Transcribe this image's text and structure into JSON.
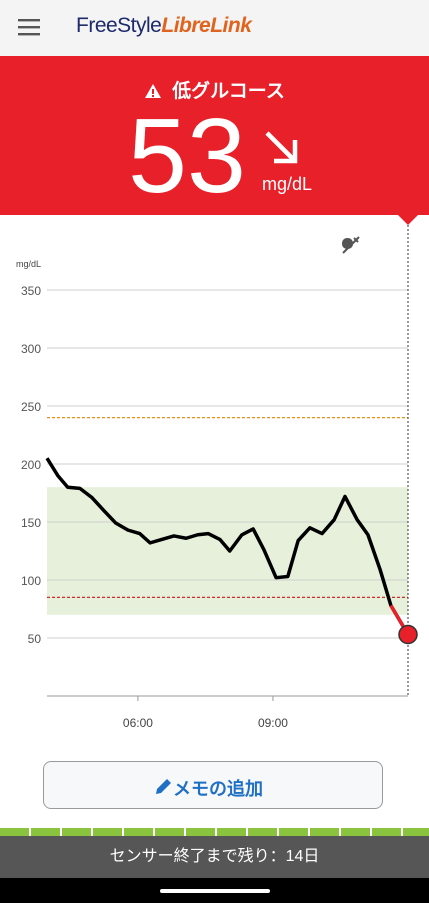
{
  "header": {
    "brand_first": "FreeStyle",
    "brand_second": "LibreLink"
  },
  "alert": {
    "title": "低グルコース",
    "value": 53,
    "unit": "mg/dL"
  },
  "chart_data": {
    "type": "line",
    "y_label": "mg/dL",
    "xlim": [
      3.98,
      12.0
    ],
    "ylim": [
      0,
      400
    ],
    "xticks": [
      {
        "value": 6,
        "label": "06:00"
      },
      {
        "value": 9,
        "label": "09:00"
      }
    ],
    "yticks": [
      50,
      100,
      150,
      200,
      250,
      300,
      350
    ],
    "grid": true,
    "target_range": {
      "low": 70,
      "high": 180,
      "color": "#e6f0da"
    },
    "thresholds": [
      {
        "value": 240,
        "color": "#e8901c"
      },
      {
        "value": 85,
        "color": "#d42a2a"
      }
    ],
    "series": [
      {
        "color": "#000000",
        "low_color": "#e8202a",
        "x": [
          3.98,
          4.22,
          4.44,
          4.71,
          4.98,
          5.24,
          5.51,
          5.78,
          6.04,
          6.27,
          6.53,
          6.8,
          7.07,
          7.33,
          7.56,
          7.82,
          8.04,
          8.31,
          8.56,
          8.8,
          9.07,
          9.33,
          9.56,
          9.82,
          10.09,
          10.36,
          10.6,
          10.87,
          11.11,
          11.38,
          11.62,
          12.0
        ],
        "values": [
          205,
          190,
          180,
          179,
          171,
          160,
          149,
          143,
          140,
          132,
          135,
          138,
          136,
          139,
          140,
          135,
          125,
          139,
          144,
          126,
          102,
          103,
          134,
          145,
          140,
          152,
          172,
          152,
          139,
          109,
          78,
          53
        ]
      }
    ]
  },
  "button": {
    "label": "メモの追加"
  },
  "footer": {
    "text": "センサー終了まで残り：14日"
  }
}
